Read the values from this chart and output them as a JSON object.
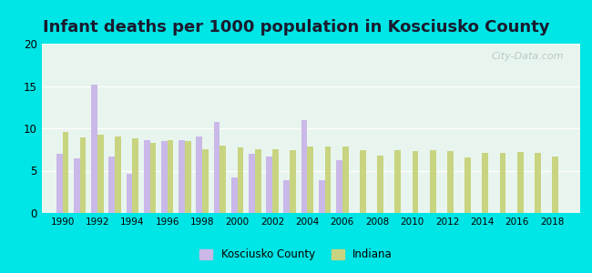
{
  "title": "Infant deaths per 1000 population in Kosciusko County",
  "years": [
    1990,
    1991,
    1992,
    1993,
    1994,
    1995,
    1996,
    1997,
    1998,
    1999,
    2000,
    2001,
    2002,
    2003,
    2004,
    2005,
    2006,
    2007,
    2008,
    2009,
    2010,
    2011,
    2012,
    2013,
    2014,
    2015,
    2016,
    2017,
    2018
  ],
  "kosciusko": [
    7.0,
    6.5,
    15.2,
    6.7,
    4.6,
    8.6,
    8.5,
    8.6,
    9.0,
    10.8,
    4.2,
    7.0,
    6.7,
    3.9,
    11.0,
    3.9,
    6.2,
    null,
    null,
    null,
    null,
    null,
    null,
    null,
    null,
    null,
    null,
    null,
    null
  ],
  "indiana": [
    9.6,
    8.9,
    9.3,
    9.0,
    8.8,
    8.3,
    8.6,
    8.5,
    7.5,
    8.0,
    7.7,
    7.5,
    7.5,
    7.4,
    7.9,
    7.9,
    7.9,
    7.4,
    6.8,
    7.4,
    7.3,
    7.4,
    7.3,
    6.6,
    7.1,
    7.1,
    7.2,
    7.1,
    6.7
  ],
  "kosciusko_color": "#c9b8e8",
  "indiana_color": "#c8d480",
  "plot_bg": "#e8f5ee",
  "outer_bg": "#00e5e5",
  "ylim": [
    0,
    20
  ],
  "yticks": [
    0,
    5,
    10,
    15,
    20
  ],
  "title_fontsize": 13,
  "watermark": "City-Data.com",
  "bar_width": 0.35
}
